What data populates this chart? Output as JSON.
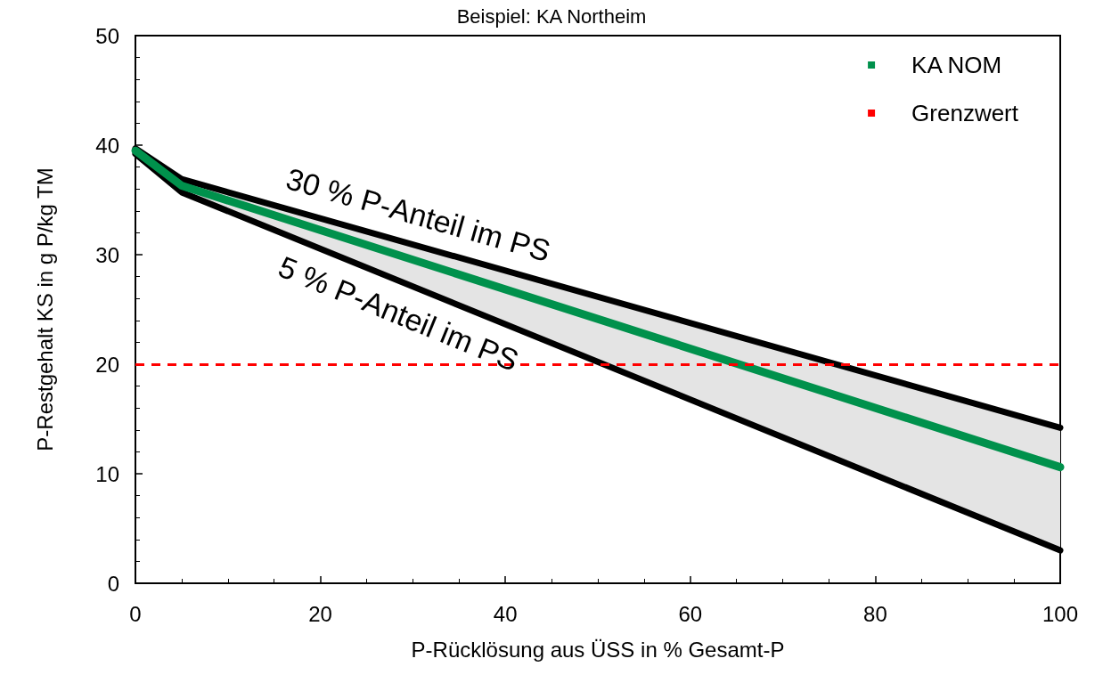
{
  "chart_data": {
    "type": "line",
    "title": "Beispiel: KA Northeim",
    "xlabel": "P-Rücklösung aus ÜSS in % Gesamt-P",
    "ylabel": "P-Restgehalt KS in g P/kg TM",
    "x": [
      0,
      5,
      100
    ],
    "series": [
      {
        "name": "30 % P-Anteil im PS",
        "color": "#000000",
        "values": [
          39.7,
          36.9,
          14.2
        ]
      },
      {
        "name": "5 % P-Anteil im PS",
        "color": "#000000",
        "values": [
          39.2,
          35.7,
          3.0
        ]
      },
      {
        "name": "KA NOM",
        "color": "#00914c",
        "values": [
          39.5,
          36.3,
          10.6
        ],
        "lower": [
          39.2,
          35.7,
          3.0
        ],
        "upper": [
          39.7,
          36.9,
          14.2
        ]
      }
    ],
    "ref_lines": [
      {
        "axis": "y",
        "value": 20,
        "label": "Grenzwert",
        "color": "#ff0000",
        "line_style": "dashed"
      }
    ],
    "xlim": [
      0,
      100
    ],
    "xticks": [
      0,
      20,
      40,
      60,
      80,
      100
    ],
    "ylim": [
      0,
      50
    ],
    "yticks": [
      0,
      10,
      20,
      30,
      40,
      50
    ],
    "grid": false,
    "legend": "top right",
    "marker": "none",
    "line_style": "solid"
  }
}
